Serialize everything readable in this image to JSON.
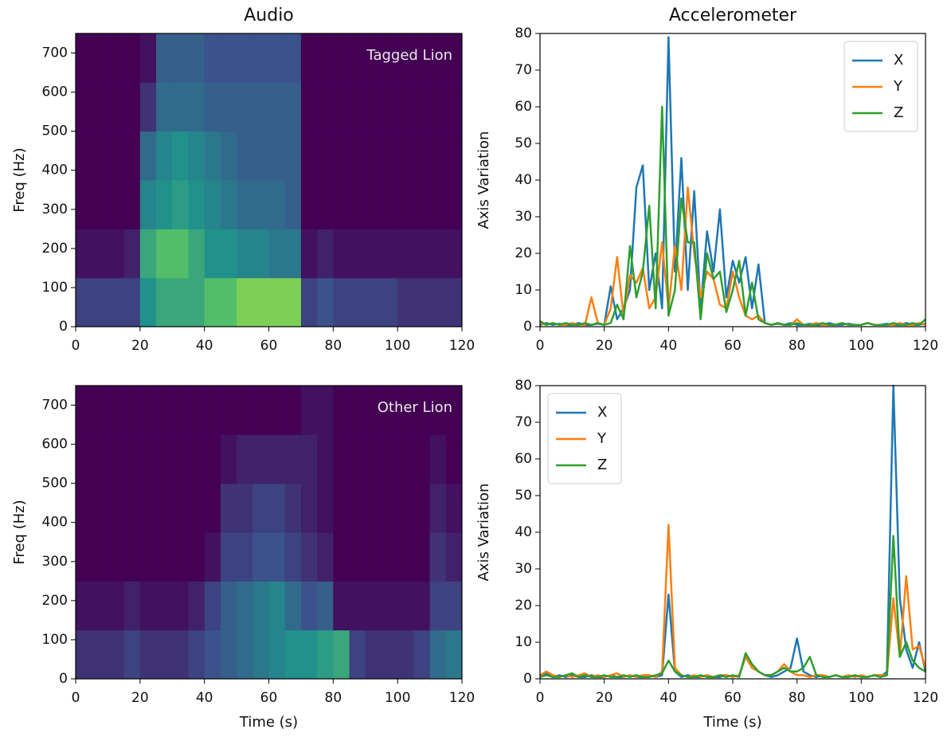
{
  "chart_data": [
    {
      "type": "spectrogram",
      "title": "Audio",
      "ylabel": "Freq (Hz)",
      "annotation": "Tagged Lion",
      "xlim": [
        0,
        120
      ],
      "ylim": [
        0,
        750
      ],
      "xticks": [
        0,
        20,
        40,
        60,
        80,
        100,
        120
      ],
      "yticks": [
        0,
        100,
        200,
        300,
        400,
        500,
        600,
        700
      ],
      "z": [
        [
          0.2,
          0.2,
          0.2,
          0.2,
          0.5,
          0.6,
          0.6,
          0.6,
          0.7,
          0.7,
          0.8,
          0.8,
          0.8,
          0.8,
          0.2,
          0.25,
          0.2,
          0.2,
          0.2,
          0.2,
          0.15,
          0.15,
          0.15,
          0.15
        ],
        [
          0.05,
          0.05,
          0.05,
          0.1,
          0.6,
          0.7,
          0.7,
          0.6,
          0.5,
          0.5,
          0.45,
          0.45,
          0.4,
          0.4,
          0.05,
          0.1,
          0.05,
          0.05,
          0.05,
          0.05,
          0.05,
          0.05,
          0.05,
          0.05
        ],
        [
          0,
          0,
          0,
          0,
          0.45,
          0.5,
          0.55,
          0.5,
          0.45,
          0.4,
          0.35,
          0.35,
          0.35,
          0.3,
          0,
          0,
          0,
          0,
          0,
          0,
          0,
          0,
          0,
          0
        ],
        [
          0,
          0,
          0,
          0,
          0.35,
          0.45,
          0.5,
          0.45,
          0.4,
          0.35,
          0.3,
          0.3,
          0.3,
          0.3,
          0,
          0,
          0,
          0,
          0,
          0,
          0,
          0,
          0,
          0
        ],
        [
          0,
          0,
          0,
          0,
          0.15,
          0.35,
          0.35,
          0.35,
          0.3,
          0.3,
          0.3,
          0.3,
          0.3,
          0.3,
          0,
          0,
          0,
          0,
          0,
          0,
          0,
          0,
          0,
          0
        ],
        [
          0,
          0,
          0,
          0,
          0.05,
          0.3,
          0.3,
          0.3,
          0.25,
          0.25,
          0.25,
          0.25,
          0.25,
          0.25,
          0,
          0,
          0,
          0,
          0,
          0,
          0,
          0,
          0,
          0
        ]
      ]
    },
    {
      "type": "line",
      "title": "Accelerometer",
      "ylabel": "Axis Variation",
      "legend": "upper right",
      "xlim": [
        0,
        120
      ],
      "ylim": [
        0,
        80
      ],
      "xticks": [
        0,
        20,
        40,
        60,
        80,
        100,
        120
      ],
      "yticks": [
        0,
        10,
        20,
        30,
        40,
        50,
        60,
        70,
        80
      ],
      "x": [
        0,
        2,
        4,
        6,
        8,
        10,
        12,
        14,
        16,
        18,
        20,
        22,
        24,
        26,
        28,
        30,
        32,
        34,
        36,
        38,
        40,
        42,
        44,
        46,
        48,
        50,
        52,
        54,
        56,
        58,
        60,
        62,
        64,
        66,
        68,
        70,
        72,
        74,
        76,
        78,
        80,
        82,
        84,
        86,
        88,
        90,
        92,
        94,
        96,
        98,
        100,
        102,
        104,
        106,
        108,
        110,
        112,
        114,
        116,
        118,
        120
      ],
      "series": [
        {
          "name": "X",
          "color": "#1f77b4",
          "values": [
            0.5,
            1,
            0.5,
            0.8,
            0.5,
            0.5,
            1,
            0.5,
            0.5,
            0.8,
            0.5,
            11,
            2,
            5,
            10,
            38,
            44,
            10,
            20,
            5,
            79,
            15,
            46,
            10,
            37,
            5,
            26,
            15,
            32,
            8,
            18,
            12,
            19,
            5,
            17,
            1,
            0.5,
            0.8,
            0.5,
            1,
            0.5,
            0.5,
            0.8,
            0.5,
            0.5,
            1,
            0.5,
            0.5,
            0.8,
            0.5,
            0.5,
            1,
            0.5,
            0.5,
            0.8,
            0.5,
            0.5,
            1,
            0.5,
            0.5,
            0.8
          ]
        },
        {
          "name": "Y",
          "color": "#ff7f0e",
          "values": [
            1,
            0.5,
            1,
            0.5,
            0.5,
            1,
            0.5,
            0.5,
            8,
            1,
            0.5,
            5,
            19,
            3,
            14,
            12,
            16,
            5,
            8,
            23,
            5,
            22,
            10,
            38,
            20,
            8,
            15,
            13,
            6,
            5,
            15,
            8,
            3,
            2,
            3,
            1,
            0.5,
            1,
            0.5,
            0.5,
            2,
            0.5,
            0.5,
            1,
            0.5,
            0.5,
            0.5,
            1,
            0.5,
            0.5,
            0.5,
            1,
            0.5,
            0.5,
            0.5,
            0.5,
            1,
            0.5,
            0.5,
            1,
            0.5
          ]
        },
        {
          "name": "Z",
          "color": "#2ca02c",
          "values": [
            1.5,
            0.5,
            1,
            0.5,
            1,
            0.5,
            0.5,
            1,
            0.5,
            1,
            0.5,
            1,
            6,
            2,
            22,
            8,
            15,
            33,
            5,
            60,
            3,
            10,
            35,
            23,
            23,
            2,
            20,
            13,
            15,
            4,
            10,
            18,
            3,
            12,
            2,
            1,
            0.5,
            1,
            0.5,
            0.5,
            1,
            0.5,
            0.5,
            0.5,
            1,
            0.5,
            0.5,
            1,
            0.5,
            0.5,
            0.5,
            1,
            0.5,
            0.5,
            0.5,
            1,
            0.5,
            0.5,
            1,
            0.5,
            2
          ]
        }
      ]
    },
    {
      "type": "spectrogram",
      "xlabel": "Time (s)",
      "ylabel": "Freq (Hz)",
      "annotation": "Other Lion",
      "xlim": [
        0,
        120
      ],
      "ylim": [
        0,
        750
      ],
      "xticks": [
        0,
        20,
        40,
        60,
        80,
        100,
        120
      ],
      "yticks": [
        0,
        100,
        200,
        300,
        400,
        500,
        600,
        700
      ],
      "z": [
        [
          0.15,
          0.15,
          0.15,
          0.2,
          0.15,
          0.15,
          0.15,
          0.2,
          0.25,
          0.3,
          0.35,
          0.4,
          0.45,
          0.5,
          0.5,
          0.55,
          0.6,
          0.2,
          0.15,
          0.15,
          0.15,
          0.2,
          0.35,
          0.4
        ],
        [
          0.05,
          0.05,
          0.05,
          0.1,
          0.05,
          0.05,
          0.05,
          0.1,
          0.2,
          0.3,
          0.35,
          0.4,
          0.45,
          0.35,
          0.25,
          0.3,
          0.05,
          0.05,
          0.05,
          0.05,
          0.05,
          0.05,
          0.2,
          0.2
        ],
        [
          0,
          0,
          0,
          0,
          0,
          0,
          0,
          0,
          0.05,
          0.2,
          0.2,
          0.25,
          0.25,
          0.2,
          0.15,
          0.1,
          0,
          0,
          0,
          0,
          0,
          0,
          0.15,
          0.1
        ],
        [
          0,
          0,
          0,
          0,
          0,
          0,
          0,
          0,
          0,
          0.15,
          0.15,
          0.2,
          0.2,
          0.15,
          0.1,
          0.05,
          0,
          0,
          0,
          0,
          0,
          0,
          0.1,
          0.05
        ],
        [
          0,
          0,
          0,
          0,
          0,
          0,
          0,
          0,
          0,
          0.05,
          0.1,
          0.1,
          0.1,
          0.1,
          0.1,
          0.05,
          0,
          0,
          0,
          0,
          0,
          0,
          0.05,
          0
        ],
        [
          0,
          0,
          0,
          0,
          0,
          0,
          0,
          0,
          0,
          0,
          0,
          0,
          0,
          0,
          0.05,
          0.05,
          0,
          0,
          0,
          0,
          0,
          0,
          0,
          0
        ]
      ]
    },
    {
      "type": "line",
      "xlabel": "Time (s)",
      "ylabel": "Axis Variation",
      "legend": "upper left",
      "xlim": [
        0,
        120
      ],
      "ylim": [
        0,
        80
      ],
      "xticks": [
        0,
        20,
        40,
        60,
        80,
        100,
        120
      ],
      "yticks": [
        0,
        10,
        20,
        30,
        40,
        50,
        60,
        70,
        80
      ],
      "x": [
        0,
        2,
        4,
        6,
        8,
        10,
        12,
        14,
        16,
        18,
        20,
        22,
        24,
        26,
        28,
        30,
        32,
        34,
        36,
        38,
        40,
        42,
        44,
        46,
        48,
        50,
        52,
        54,
        56,
        58,
        60,
        62,
        64,
        66,
        68,
        70,
        72,
        74,
        76,
        78,
        80,
        82,
        84,
        86,
        88,
        90,
        92,
        94,
        96,
        98,
        100,
        102,
        104,
        106,
        108,
        110,
        112,
        114,
        116,
        118,
        120
      ],
      "series": [
        {
          "name": "X",
          "color": "#1f77b4",
          "values": [
            1,
            1.5,
            0.5,
            1,
            0.5,
            1,
            0.5,
            0.5,
            1,
            0.5,
            0.5,
            1,
            0.5,
            0.5,
            1,
            0.5,
            0.5,
            1,
            0.5,
            1,
            23,
            2,
            0.5,
            1,
            0.5,
            0.5,
            1,
            0.5,
            0.5,
            1,
            0.5,
            1,
            6,
            4,
            2,
            1,
            0.5,
            1,
            2,
            3,
            11,
            2,
            1,
            0.5,
            1,
            0.5,
            1,
            0.5,
            0.5,
            1,
            0.5,
            0.5,
            1,
            0.5,
            2,
            80,
            22,
            8,
            3,
            10,
            2
          ]
        },
        {
          "name": "Y",
          "color": "#ff7f0e",
          "values": [
            1,
            2,
            1,
            0.5,
            1,
            0.5,
            1,
            1.5,
            0.5,
            1,
            0.5,
            1,
            1.5,
            0.5,
            1,
            0.5,
            1,
            1,
            0.5,
            2,
            42,
            3,
            1,
            0.5,
            1,
            0.5,
            1,
            0.5,
            1,
            1,
            0.5,
            1,
            6,
            3,
            2,
            1,
            1,
            2,
            4,
            2,
            1,
            1,
            0.5,
            1,
            1,
            0.5,
            1,
            0.5,
            1,
            0.5,
            1,
            0.5,
            1,
            1,
            1,
            22,
            6,
            28,
            8,
            9,
            3
          ]
        },
        {
          "name": "Z",
          "color": "#2ca02c",
          "values": [
            0.5,
            1,
            0.5,
            0.5,
            1,
            1.5,
            0.5,
            1,
            0.5,
            0.5,
            1,
            0.5,
            0.5,
            1,
            0.5,
            1,
            0.5,
            0.5,
            1,
            1.5,
            5,
            2,
            1,
            0.5,
            0.5,
            1,
            0.5,
            0.5,
            1,
            0.5,
            1,
            0.5,
            7,
            4,
            2,
            1,
            1,
            2,
            3,
            2,
            2,
            3,
            6,
            1,
            0.5,
            0.5,
            1,
            0.5,
            0.5,
            1,
            0.5,
            0.5,
            1,
            0.5,
            1,
            39,
            6,
            10,
            5,
            3,
            2
          ]
        }
      ]
    }
  ]
}
